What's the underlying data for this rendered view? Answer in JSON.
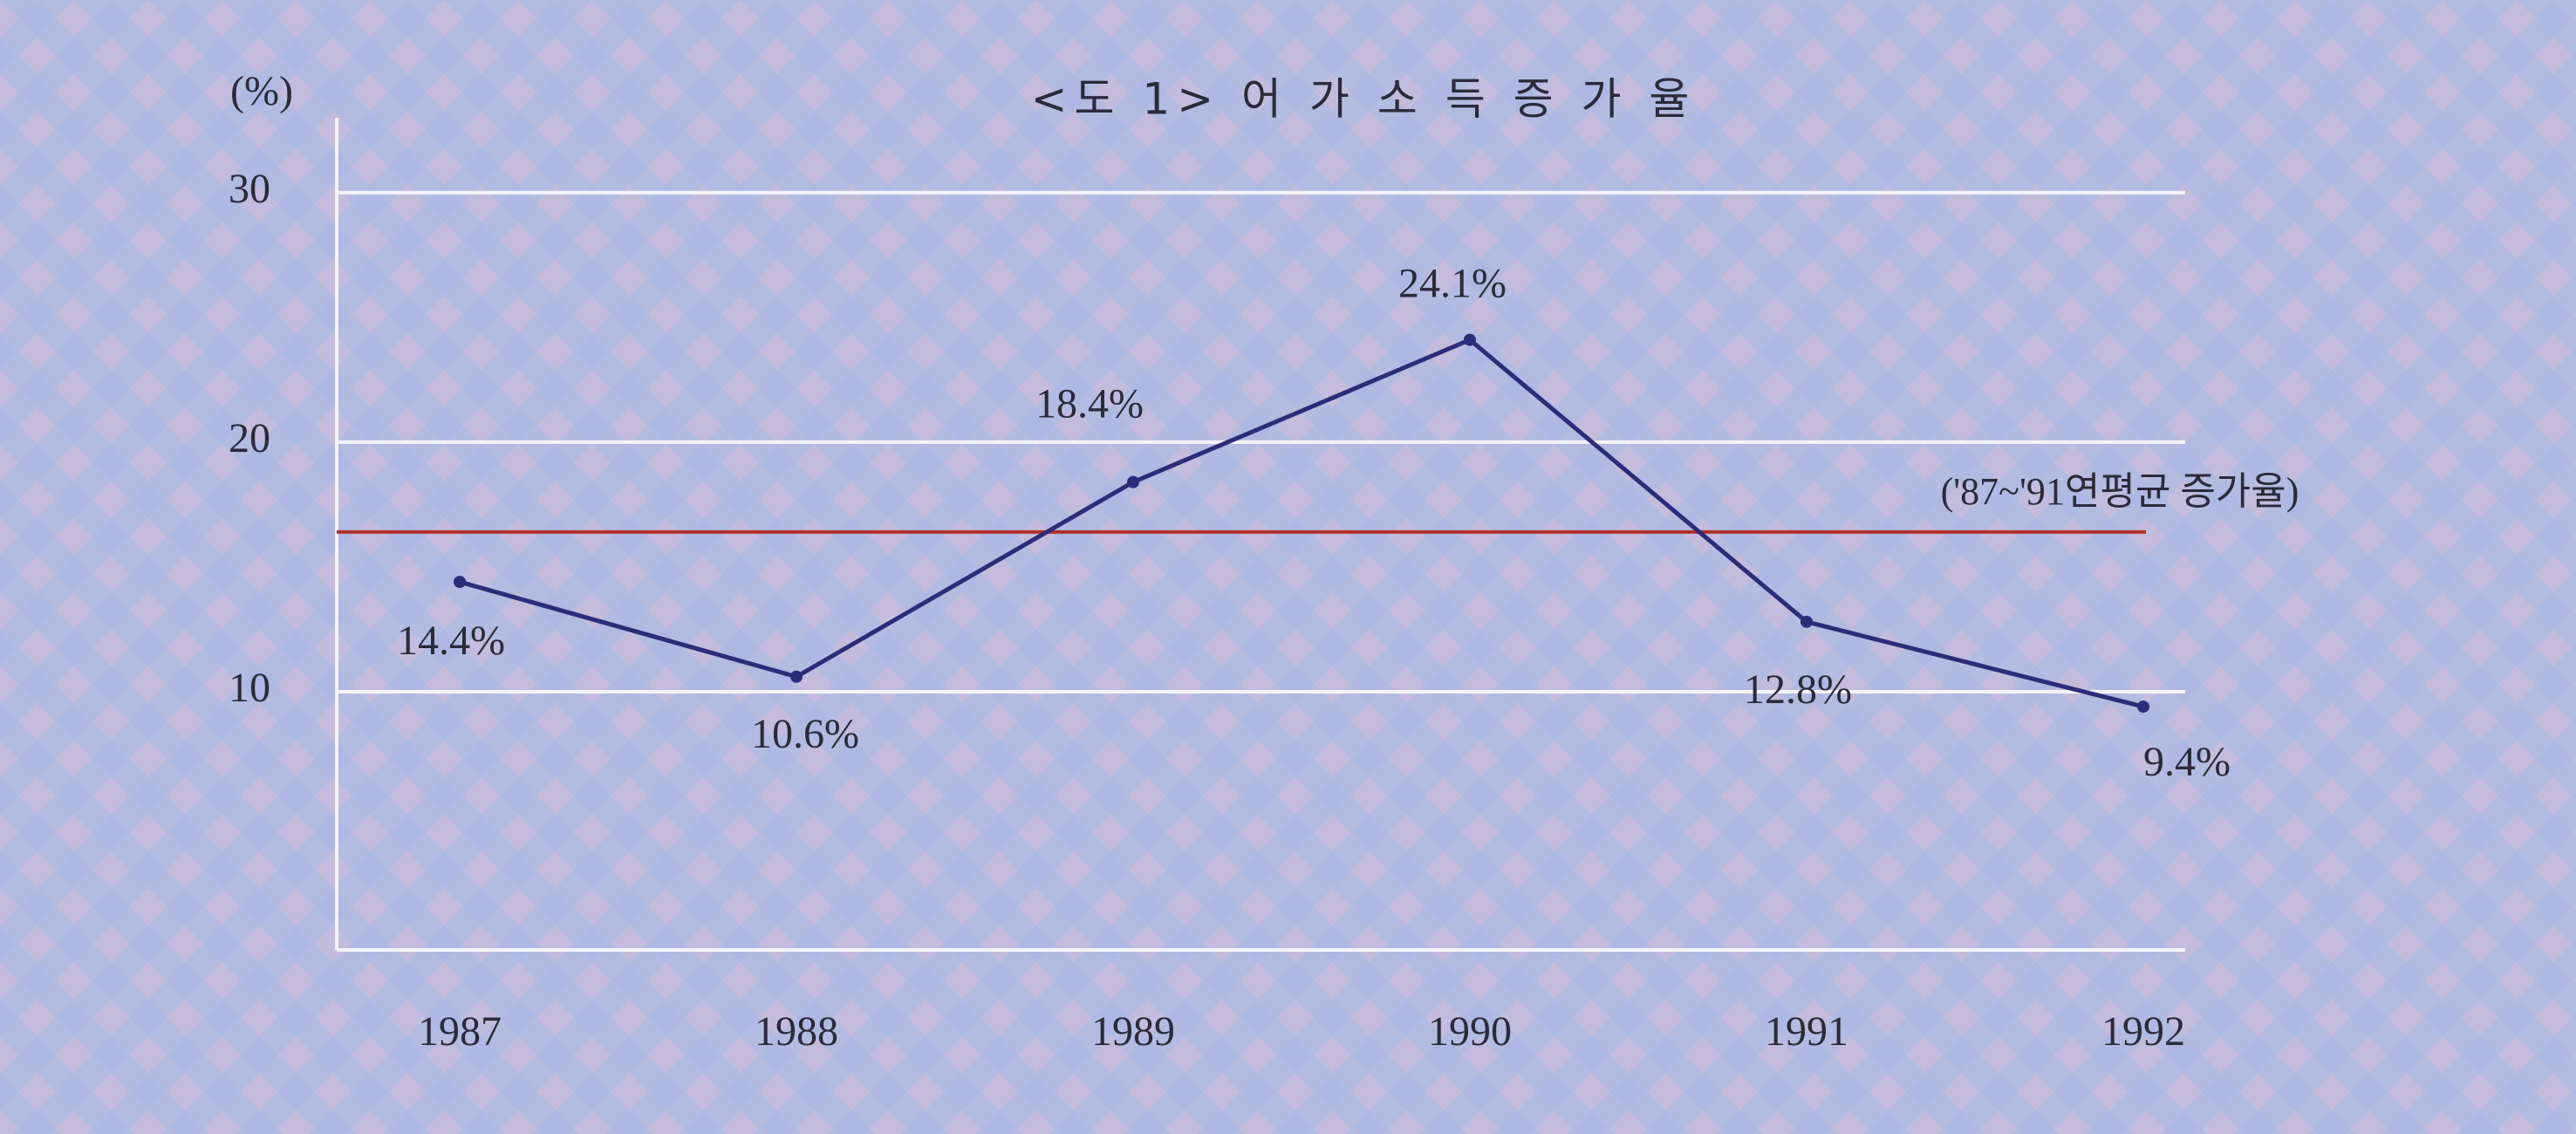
{
  "chart_data": {
    "type": "line",
    "title": "<도 1> 어 가 소 득 증 가 율",
    "y_label": "(%)",
    "categories": [
      "1987",
      "1988",
      "1989",
      "1990",
      "1991",
      "1992"
    ],
    "series": [
      {
        "color": "#2c2c78",
        "values": [
          14.4,
          10.6,
          18.4,
          24.1,
          12.8,
          9.4
        ],
        "value_labels": [
          "14.4%",
          "10.6%",
          "18.4%",
          "24.1%",
          "12.8%",
          "9.4%"
        ]
      }
    ],
    "reference_line": {
      "value": 16.4,
      "label": "('87~'91연평균 증가율)",
      "color": "#b0302c"
    },
    "ylim": [
      0,
      33
    ],
    "yticks": [
      10,
      20,
      30
    ],
    "grid": true
  }
}
